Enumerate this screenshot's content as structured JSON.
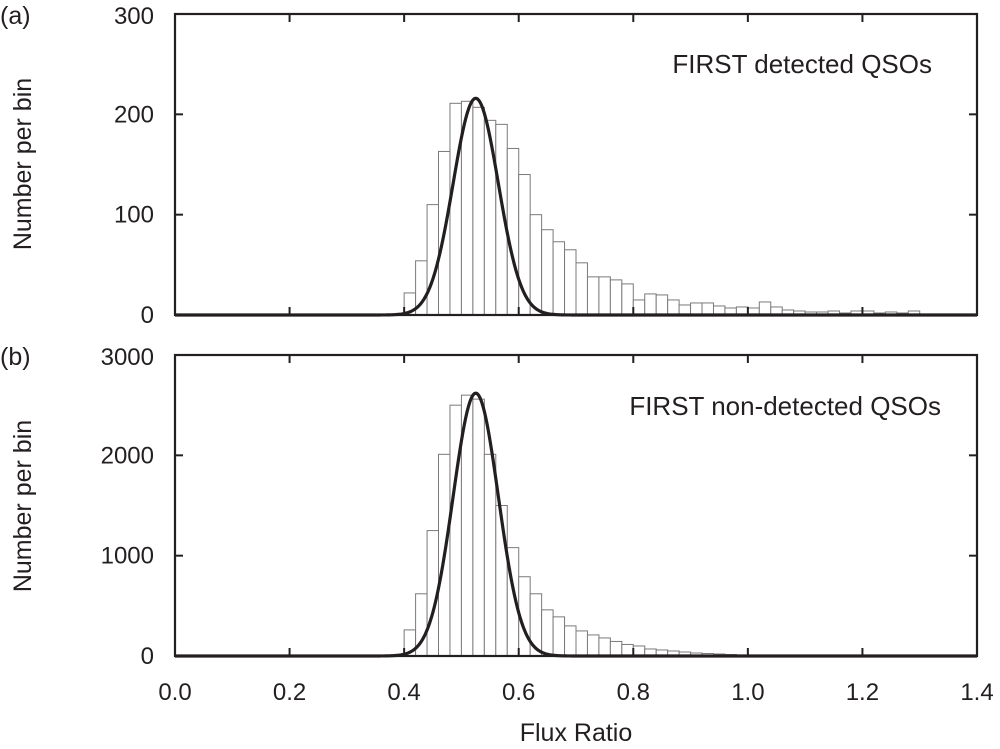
{
  "colors": {
    "ink": "#231f20",
    "bar_edge": "#7a7a7a",
    "bar_fill": "#ffffff",
    "curve": "#231f20"
  },
  "chart_data": [
    {
      "type": "bar",
      "panel_label": "(a)",
      "annotation": "FIRST detected QSOs",
      "xlabel": "",
      "ylabel": "Number per bin",
      "xlim": [
        0.0,
        1.4
      ],
      "ylim": [
        0,
        300
      ],
      "yticks": [
        0,
        100,
        200,
        300
      ],
      "ytick_labels": [
        "0",
        "100",
        "200",
        "300"
      ],
      "bin_width": 0.02,
      "bins_start": [
        0.4,
        0.42,
        0.44,
        0.46,
        0.48,
        0.5,
        0.52,
        0.54,
        0.56,
        0.58,
        0.6,
        0.62,
        0.64,
        0.66,
        0.68,
        0.7,
        0.72,
        0.74,
        0.76,
        0.78,
        0.8,
        0.82,
        0.84,
        0.86,
        0.88,
        0.9,
        0.92,
        0.94,
        0.96,
        0.98,
        1.0,
        1.02,
        1.04,
        1.06,
        1.08,
        1.1,
        1.12,
        1.14,
        1.16,
        1.18,
        1.2,
        1.22,
        1.24,
        1.26,
        1.28
      ],
      "counts": [
        22,
        54,
        110,
        163,
        211,
        213,
        207,
        194,
        190,
        166,
        140,
        100,
        85,
        73,
        65,
        52,
        38,
        38,
        35,
        31,
        15,
        21,
        20,
        15,
        10,
        12,
        12,
        9,
        7,
        8,
        7,
        13,
        8,
        5,
        4,
        3,
        3,
        4,
        2,
        4,
        4,
        2,
        3,
        2,
        4
      ],
      "gaussian": {
        "mean": 0.525,
        "sigma": 0.0395,
        "peak": 216
      }
    },
    {
      "type": "bar",
      "panel_label": "(b)",
      "annotation": "FIRST non-detected QSOs",
      "xlabel": "Flux Ratio",
      "ylabel": "Number per bin",
      "xlim": [
        0.0,
        1.4
      ],
      "ylim": [
        0,
        3000
      ],
      "yticks": [
        0,
        1000,
        2000,
        3000
      ],
      "ytick_labels": [
        "0",
        "1000",
        "2000",
        "3000"
      ],
      "xticks": [
        0.0,
        0.2,
        0.4,
        0.6,
        0.8,
        1.0,
        1.2,
        1.4
      ],
      "xtick_labels": [
        "0.0",
        "0.2",
        "0.4",
        "0.6",
        "0.8",
        "1.0",
        "1.2",
        "1.4"
      ],
      "bin_width": 0.02,
      "bins_start": [
        0.4,
        0.42,
        0.44,
        0.46,
        0.48,
        0.5,
        0.52,
        0.54,
        0.56,
        0.58,
        0.6,
        0.62,
        0.64,
        0.66,
        0.68,
        0.7,
        0.72,
        0.74,
        0.76,
        0.78,
        0.8,
        0.82,
        0.84,
        0.86,
        0.88,
        0.9,
        0.92,
        0.94,
        0.96,
        0.98
      ],
      "counts": [
        260,
        620,
        1250,
        2010,
        2500,
        2600,
        2560,
        2010,
        1500,
        1080,
        790,
        620,
        460,
        390,
        300,
        250,
        210,
        180,
        145,
        115,
        100,
        70,
        60,
        50,
        40,
        30,
        25,
        20,
        15,
        10
      ],
      "gaussian": {
        "mean": 0.525,
        "sigma": 0.0395,
        "peak": 2620
      }
    }
  ]
}
